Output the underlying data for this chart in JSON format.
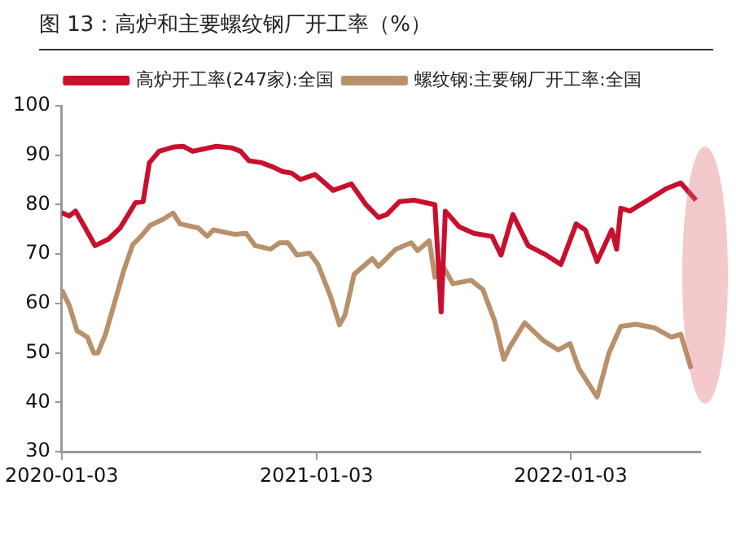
{
  "chart_data": {
    "type": "line",
    "title": "图 13：高炉和主要螺纹钢厂开工率（%）",
    "xlim": [
      "2020-01-03",
      "2022-07-08"
    ],
    "xticks": [
      "2020-01-03",
      "2021-01-03",
      "2022-01-03"
    ],
    "ylim": [
      30,
      100
    ],
    "yticks": [
      30,
      40,
      50,
      60,
      70,
      80,
      90,
      100
    ],
    "grid": false,
    "legend": "top",
    "marker": "none",
    "line_style": "solid",
    "series": [
      {
        "name": "高炉开工率(247家):全国",
        "color": "#c8102e",
        "x": [
          "2020-01-03",
          "2020-01-14",
          "2020-01-23",
          "2020-02-05",
          "2020-02-20",
          "2020-03-10",
          "2020-03-27",
          "2020-04-18",
          "2020-04-29",
          "2020-05-08",
          "2020-05-22",
          "2020-06-13",
          "2020-06-26",
          "2020-07-09",
          "2020-08-12",
          "2020-09-03",
          "2020-09-16",
          "2020-09-28",
          "2020-10-16",
          "2020-11-02",
          "2020-11-15",
          "2020-11-28",
          "2020-12-11",
          "2021-01-01",
          "2021-01-27",
          "2021-02-22",
          "2021-03-15",
          "2021-04-02",
          "2021-04-14",
          "2021-05-02",
          "2021-05-23",
          "2021-06-22",
          "2021-07-01",
          "2021-07-07",
          "2021-07-27",
          "2021-08-17",
          "2021-09-12",
          "2021-09-25",
          "2021-10-12",
          "2021-11-03",
          "2021-11-29",
          "2021-12-20",
          "2022-01-11",
          "2022-01-24",
          "2022-02-10",
          "2022-03-03",
          "2022-03-10",
          "2022-03-16",
          "2022-03-29",
          "2022-04-20",
          "2022-05-20",
          "2022-06-10",
          "2022-07-02"
        ],
        "values": [
          78.4,
          77.7,
          78.7,
          75.5,
          71.7,
          73,
          75.3,
          80.4,
          80.6,
          88.5,
          90.8,
          91.7,
          91.8,
          90.8,
          91.8,
          91.5,
          90.8,
          88.9,
          88.5,
          87.6,
          86.7,
          86.4,
          85.1,
          86.1,
          82.9,
          84.2,
          80,
          77.4,
          78,
          80.6,
          80.9,
          80,
          58.3,
          78.7,
          75.5,
          74.2,
          73.6,
          69.8,
          78,
          71.7,
          69.8,
          67.9,
          76.1,
          74.9,
          68.5,
          74.9,
          71,
          79.3,
          78.7,
          80.6,
          83.2,
          84.4,
          80.9
        ]
      },
      {
        "name": "螺纹钢:主要钢厂开工率:全国",
        "color": "#b8916a",
        "x": [
          "2020-01-03",
          "2020-01-14",
          "2020-01-25",
          "2020-02-09",
          "2020-02-18",
          "2020-02-24",
          "2020-03-06",
          "2020-03-19",
          "2020-04-01",
          "2020-04-14",
          "2020-04-26",
          "2020-05-09",
          "2020-05-27",
          "2020-06-11",
          "2020-06-21",
          "2020-07-17",
          "2020-07-30",
          "2020-08-08",
          "2020-09-07",
          "2020-09-24",
          "2020-10-07",
          "2020-10-29",
          "2020-11-11",
          "2020-11-23",
          "2020-12-06",
          "2020-12-24",
          "2021-01-05",
          "2021-01-23",
          "2021-02-05",
          "2021-02-13",
          "2021-02-26",
          "2021-03-24",
          "2021-04-02",
          "2021-04-27",
          "2021-05-19",
          "2021-05-28",
          "2021-06-14",
          "2021-06-22",
          "2021-07-05",
          "2021-07-18",
          "2021-08-13",
          "2021-08-30",
          "2021-09-16",
          "2021-09-29",
          "2021-10-08",
          "2021-10-29",
          "2021-11-24",
          "2021-12-16",
          "2022-01-02",
          "2022-01-15",
          "2022-02-10",
          "2022-02-27",
          "2022-03-16",
          "2022-04-07",
          "2022-05-03",
          "2022-05-28",
          "2022-06-10",
          "2022-06-25"
        ],
        "values": [
          62.8,
          59.6,
          54.5,
          53.2,
          50,
          50,
          53.8,
          60.2,
          66.6,
          71.9,
          73.6,
          75.8,
          77,
          78.3,
          76.1,
          75.3,
          73.6,
          74.9,
          74,
          74.2,
          71.7,
          71,
          72.3,
          72.3,
          69.8,
          70.2,
          67.9,
          61.5,
          55.7,
          57.7,
          65.9,
          69.1,
          67.5,
          71,
          72.3,
          70.7,
          72.7,
          65.3,
          67.2,
          64,
          64.7,
          62.8,
          56.4,
          48.7,
          51.3,
          56.1,
          52.6,
          50.6,
          51.9,
          46.8,
          41.1,
          50,
          55.4,
          55.8,
          55.1,
          53.2,
          53.8,
          46.8
        ]
      }
    ]
  }
}
